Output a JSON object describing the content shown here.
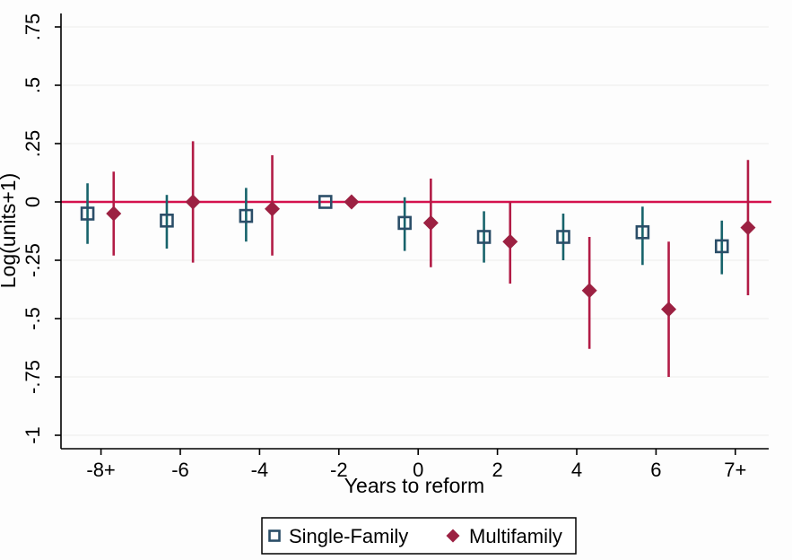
{
  "figure": {
    "background": "#fdfdfd",
    "axis_color": "#000000",
    "grid_color": "#ededec"
  },
  "chart_data": {
    "type": "scatter",
    "subtype": "event-study-with-confidence-intervals",
    "title": "",
    "xlabel": "Years to reform",
    "ylabel": "Log(units+1)",
    "xlim": [
      -9.1,
      9.1
    ],
    "ylim": [
      -1.06,
      0.81
    ],
    "grid": "horizontal-faint",
    "legend_position": "bottom-center-boxed",
    "zero_line": {
      "y": 0,
      "color": "#d4114d"
    },
    "x_ticks": [
      {
        "value": -8,
        "label": "-8+"
      },
      {
        "value": -6,
        "label": "-6"
      },
      {
        "value": -4,
        "label": "-4"
      },
      {
        "value": -2,
        "label": "-2"
      },
      {
        "value": 0,
        "label": "0"
      },
      {
        "value": 2,
        "label": "2"
      },
      {
        "value": 4,
        "label": "4"
      },
      {
        "value": 6,
        "label": "6"
      },
      {
        "value": 8,
        "label": "7+"
      }
    ],
    "y_ticks": [
      {
        "value": 0.75,
        "label": ".75"
      },
      {
        "value": 0.5,
        "label": ".5"
      },
      {
        "value": 0.25,
        "label": ".25"
      },
      {
        "value": 0,
        "label": "0"
      },
      {
        "value": -0.25,
        "label": "-.25"
      },
      {
        "value": -0.5,
        "label": "-.5"
      },
      {
        "value": -0.75,
        "label": "-.75"
      },
      {
        "value": -1,
        "label": "-1"
      }
    ],
    "series": [
      {
        "name": "Single-Family",
        "marker": "open-square",
        "marker_color": "#2b4e68",
        "line_color": "#17636b",
        "x_offset_years": -0.34,
        "points": [
          {
            "x": -8,
            "y": -0.05,
            "ci_low": -0.18,
            "ci_high": 0.08
          },
          {
            "x": -6,
            "y": -0.08,
            "ci_low": -0.2,
            "ci_high": 0.03
          },
          {
            "x": -4,
            "y": -0.06,
            "ci_low": -0.17,
            "ci_high": 0.06
          },
          {
            "x": -2,
            "y": 0.0,
            "ci_low": null,
            "ci_high": null,
            "reference": true
          },
          {
            "x": 0,
            "y": -0.09,
            "ci_low": -0.21,
            "ci_high": 0.02
          },
          {
            "x": 2,
            "y": -0.15,
            "ci_low": -0.26,
            "ci_high": -0.04
          },
          {
            "x": 4,
            "y": -0.15,
            "ci_low": -0.25,
            "ci_high": -0.05
          },
          {
            "x": 6,
            "y": -0.13,
            "ci_low": -0.27,
            "ci_high": -0.02
          },
          {
            "x": 8,
            "y": -0.19,
            "ci_low": -0.31,
            "ci_high": -0.08
          }
        ]
      },
      {
        "name": "Multifamily",
        "marker": "filled-diamond",
        "marker_color": "#9c2142",
        "line_color": "#b21c46",
        "x_offset_years": 0.32,
        "points": [
          {
            "x": -8,
            "y": -0.05,
            "ci_low": -0.23,
            "ci_high": 0.13
          },
          {
            "x": -6,
            "y": 0.0,
            "ci_low": -0.26,
            "ci_high": 0.26
          },
          {
            "x": -4,
            "y": -0.03,
            "ci_low": -0.23,
            "ci_high": 0.2
          },
          {
            "x": -2,
            "y": 0.0,
            "ci_low": null,
            "ci_high": null,
            "reference": true
          },
          {
            "x": 0,
            "y": -0.09,
            "ci_low": -0.28,
            "ci_high": 0.1
          },
          {
            "x": 2,
            "y": -0.17,
            "ci_low": -0.35,
            "ci_high": 0.0
          },
          {
            "x": 4,
            "y": -0.38,
            "ci_low": -0.63,
            "ci_high": -0.15
          },
          {
            "x": 6,
            "y": -0.46,
            "ci_low": -0.75,
            "ci_high": -0.17
          },
          {
            "x": 8,
            "y": -0.11,
            "ci_low": -0.4,
            "ci_high": 0.18
          }
        ]
      }
    ]
  }
}
